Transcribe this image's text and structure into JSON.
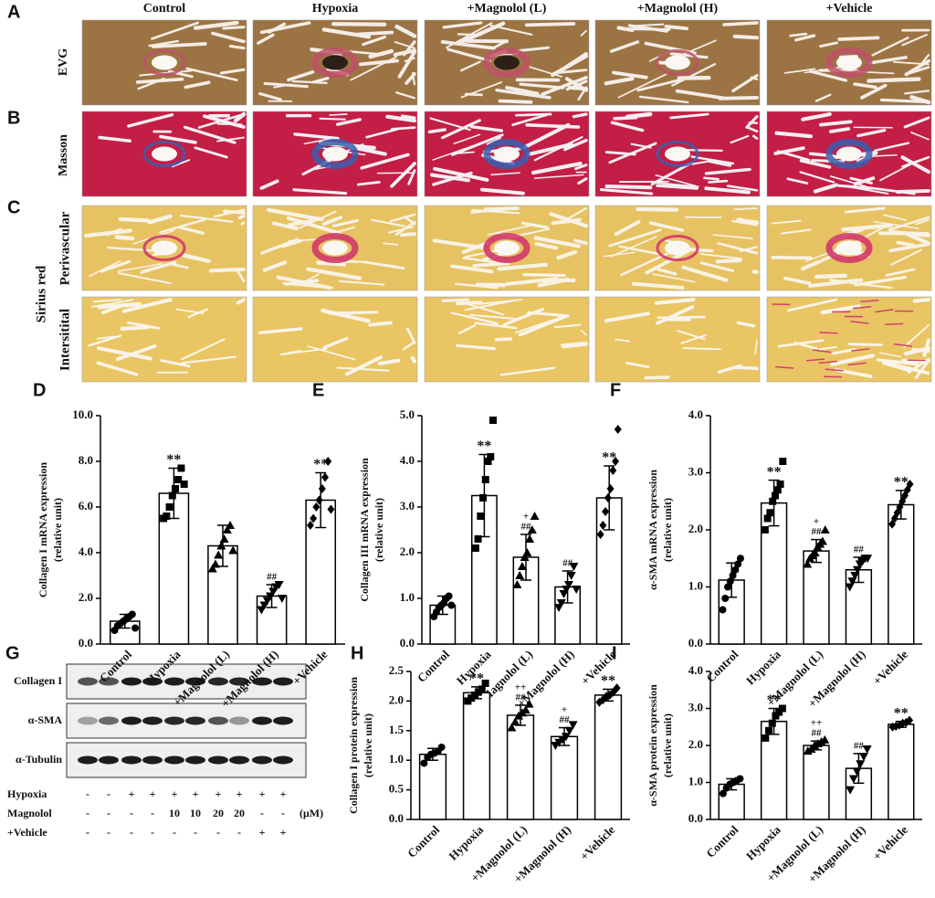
{
  "histology": {
    "panels": [
      "A",
      "B",
      "C"
    ],
    "columns": [
      "Control",
      "Hypoxia",
      "+Magnolol (L)",
      "+Magnolol (H)",
      "+Vehicle"
    ],
    "rows": [
      "EVG",
      "Masson"
    ],
    "stain": "Sirius red",
    "subrows": [
      "Perivascular",
      "Intersitital"
    ]
  },
  "western_blot": {
    "panel": "G",
    "proteins": [
      "Collagen I",
      "α-SMA",
      "α-Tubulin"
    ],
    "conditions": [
      {
        "name": "Hypoxia",
        "marks": [
          "-",
          "-",
          "+",
          "+",
          "+",
          "+",
          "+",
          "+",
          "+",
          "+"
        ]
      },
      {
        "name": "Magnolol",
        "marks": [
          "-",
          "-",
          "-",
          "-",
          "10",
          "10",
          "20",
          "20",
          "-",
          "-"
        ]
      },
      {
        "name": "+Vehicle",
        "marks": [
          "-",
          "-",
          "-",
          "-",
          "-",
          "-",
          "-",
          "-",
          "+",
          "+"
        ]
      }
    ],
    "unit": "(μM)"
  },
  "chart_data": [
    {
      "type": "bar",
      "panel": "D",
      "y_label": [
        "Collagen I mRNA expression",
        "(relative unit)"
      ],
      "categories": [
        "Control",
        "Hypoxia",
        "+Magnolol (L)",
        "+Magnolol (H)",
        "+Vehicle"
      ],
      "values": [
        1.0,
        6.6,
        4.3,
        2.1,
        6.3
      ],
      "errors": [
        0.3,
        1.1,
        0.9,
        0.5,
        1.2
      ],
      "points": [
        [
          0.6,
          0.8,
          0.9,
          1.0,
          1.1,
          1.2,
          1.3,
          0.7
        ],
        [
          5.5,
          5.6,
          6.0,
          6.5,
          6.8,
          7.2,
          7.7,
          7.0
        ],
        [
          3.3,
          3.5,
          3.9,
          4.3,
          4.6,
          5.0,
          5.2,
          4.1
        ],
        [
          1.5,
          1.7,
          1.9,
          2.1,
          2.3,
          2.5,
          2.6,
          2.0
        ],
        [
          5.2,
          5.5,
          6.0,
          6.3,
          6.8,
          7.3,
          8.0,
          5.9
        ]
      ],
      "annotations": [
        null,
        [
          "**"
        ],
        null,
        [
          "##"
        ],
        [
          "**"
        ]
      ],
      "ylim": [
        0,
        10
      ],
      "yticks": [
        {
          "value": 0,
          "label": "0.0"
        },
        {
          "value": 2,
          "label": "2.0"
        },
        {
          "value": 4,
          "label": "4.0"
        },
        {
          "value": 6,
          "label": "6.0"
        },
        {
          "value": 8,
          "label": "8.0"
        },
        {
          "value": 10,
          "label": "10.0"
        }
      ]
    },
    {
      "type": "bar",
      "panel": "E",
      "y_label": [
        "Collagen III mRNA expression",
        "(relative unit)"
      ],
      "categories": [
        "Control",
        "Hypoxia",
        "+Magnolol (L)",
        "+Magnolol (H)",
        "+Vehicle"
      ],
      "values": [
        0.85,
        3.25,
        1.9,
        1.25,
        3.2
      ],
      "errors": [
        0.2,
        0.9,
        0.5,
        0.35,
        0.7
      ],
      "points": [
        [
          0.6,
          0.7,
          0.8,
          0.85,
          0.9,
          1.0,
          1.05,
          0.85
        ],
        [
          2.1,
          2.3,
          2.8,
          3.2,
          3.6,
          4.0,
          4.1,
          4.9
        ],
        [
          1.3,
          1.5,
          1.7,
          1.9,
          2.0,
          2.3,
          2.5,
          2.8
        ],
        [
          0.8,
          0.9,
          1.1,
          1.2,
          1.3,
          1.5,
          1.7,
          1.2
        ],
        [
          2.4,
          2.6,
          2.9,
          3.2,
          3.4,
          3.8,
          4.0,
          4.7
        ]
      ],
      "annotations": [
        null,
        [
          "**"
        ],
        [
          "+",
          "##"
        ],
        [
          "##"
        ],
        [
          "**"
        ]
      ],
      "ylim": [
        0,
        5
      ],
      "yticks": [
        {
          "value": 0,
          "label": "0.0"
        },
        {
          "value": 1,
          "label": "1.0"
        },
        {
          "value": 2,
          "label": "2.0"
        },
        {
          "value": 3,
          "label": "3.0"
        },
        {
          "value": 4,
          "label": "4.0"
        },
        {
          "value": 5,
          "label": "5.0"
        }
      ]
    },
    {
      "type": "bar",
      "panel": "F",
      "y_label": [
        "α-SMA mRNA expression",
        "(relative unit)"
      ],
      "categories": [
        "Control",
        "Hypoxia",
        "+Magnolol (L)",
        "+Magnolol (H)",
        "+Vehicle"
      ],
      "values": [
        1.12,
        2.47,
        1.63,
        1.3,
        2.44
      ],
      "errors": [
        0.3,
        0.4,
        0.2,
        0.22,
        0.25
      ],
      "points": [
        [
          0.6,
          0.8,
          1.0,
          1.1,
          1.2,
          1.3,
          1.4,
          1.5
        ],
        [
          2.0,
          2.2,
          2.3,
          2.5,
          2.6,
          2.7,
          2.8,
          3.2
        ],
        [
          1.4,
          1.5,
          1.55,
          1.6,
          1.7,
          1.75,
          1.8,
          2.0
        ],
        [
          1.0,
          1.1,
          1.2,
          1.3,
          1.4,
          1.45,
          1.5,
          1.5
        ],
        [
          2.1,
          2.2,
          2.3,
          2.4,
          2.5,
          2.6,
          2.7,
          2.8
        ]
      ],
      "annotations": [
        null,
        [
          "**"
        ],
        [
          "+",
          "##"
        ],
        [
          "##"
        ],
        [
          "**"
        ]
      ],
      "ylim": [
        0,
        4
      ],
      "yticks": [
        {
          "value": 0,
          "label": "0.0"
        },
        {
          "value": 1,
          "label": "1.0"
        },
        {
          "value": 2,
          "label": "2.0"
        },
        {
          "value": 3,
          "label": "3.0"
        },
        {
          "value": 4,
          "label": "4.0"
        }
      ]
    },
    {
      "type": "bar",
      "panel": "H",
      "y_label": [
        "Collagen I protein expression",
        "(relative unit)"
      ],
      "categories": [
        "Control",
        "Hypoxia",
        "+Magnolol (L)",
        "+Magnolol (H)",
        "+Vehicle"
      ],
      "values": [
        1.1,
        2.14,
        1.76,
        1.4,
        2.1
      ],
      "errors": [
        0.1,
        0.1,
        0.17,
        0.15,
        0.1
      ],
      "points": [
        [
          0.95,
          1.05,
          1.1,
          1.12,
          1.15,
          1.22
        ],
        [
          2.0,
          2.05,
          2.1,
          2.15,
          2.2,
          2.3
        ],
        [
          1.55,
          1.65,
          1.75,
          1.8,
          1.85,
          1.95
        ],
        [
          1.25,
          1.3,
          1.35,
          1.4,
          1.5,
          1.6
        ],
        [
          1.98,
          2.02,
          2.08,
          2.1,
          2.15,
          2.22
        ]
      ],
      "annotations": [
        null,
        [
          "**"
        ],
        [
          "++",
          "##"
        ],
        [
          "+",
          "##"
        ],
        [
          "**"
        ]
      ],
      "ylim": [
        0,
        2.5
      ],
      "yticks": [
        {
          "value": 0,
          "label": "0.0"
        },
        {
          "value": 0.5,
          "label": "0.5"
        },
        {
          "value": 1,
          "label": "1.0"
        },
        {
          "value": 1.5,
          "label": "1.5"
        },
        {
          "value": 2,
          "label": "2.0"
        },
        {
          "value": 2.5,
          "label": "2.5"
        }
      ]
    },
    {
      "type": "bar",
      "panel": "I",
      "y_label": [
        "α-SMA protein expression",
        "(relative unit)"
      ],
      "categories": [
        "Control",
        "Hypoxia",
        "+Magnolol (L)",
        "+Magnolol (H)",
        "+Vehicle"
      ],
      "values": [
        0.95,
        2.65,
        2.0,
        1.38,
        2.57
      ],
      "errors": [
        0.15,
        0.35,
        0.12,
        0.4,
        0.08
      ],
      "points": [
        [
          0.7,
          0.85,
          0.95,
          1.0,
          1.05,
          1.1
        ],
        [
          2.2,
          2.4,
          2.6,
          2.8,
          2.9,
          3.0
        ],
        [
          1.85,
          1.9,
          2.0,
          2.05,
          2.1,
          2.15
        ],
        [
          0.8,
          1.1,
          1.3,
          1.5,
          1.7,
          1.9
        ],
        [
          2.5,
          2.52,
          2.55,
          2.6,
          2.62,
          2.68
        ]
      ],
      "annotations": [
        null,
        [
          "**"
        ],
        [
          "++",
          "##"
        ],
        [
          "##"
        ],
        [
          "**"
        ]
      ],
      "ylim": [
        0,
        4
      ],
      "yticks": [
        {
          "value": 0,
          "label": "0.0"
        },
        {
          "value": 1,
          "label": "1.0"
        },
        {
          "value": 2,
          "label": "2.0"
        },
        {
          "value": 3,
          "label": "3.0"
        },
        {
          "value": 4,
          "label": "4.0"
        }
      ]
    }
  ]
}
